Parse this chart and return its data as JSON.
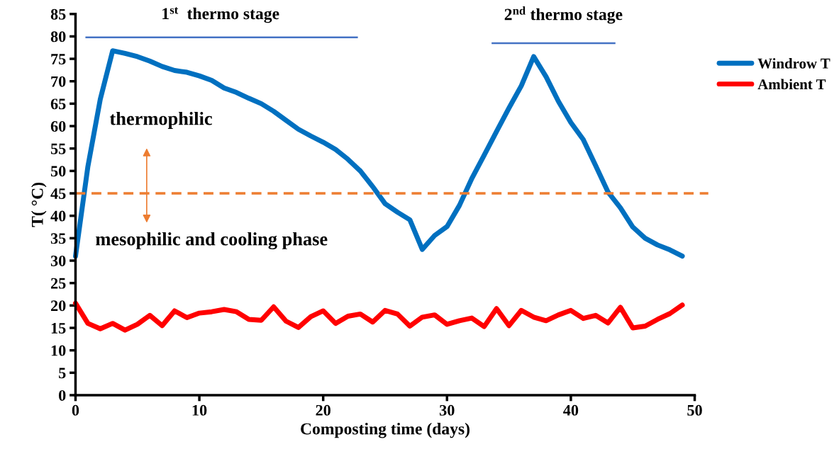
{
  "chart_data": {
    "type": "line",
    "xlabel": "Composting time (days)",
    "ylabel": "T( °C)",
    "x": [
      0,
      1,
      2,
      3,
      4,
      5,
      6,
      7,
      8,
      9,
      10,
      11,
      12,
      13,
      14,
      15,
      16,
      17,
      18,
      19,
      20,
      21,
      22,
      23,
      24,
      25,
      26,
      27,
      28,
      29,
      30,
      31,
      32,
      33,
      34,
      35,
      36,
      37,
      38,
      39,
      40,
      41,
      42,
      43,
      44,
      45,
      46,
      47,
      48,
      49
    ],
    "series": [
      {
        "name": "Windrow T",
        "color": "#0070c0",
        "values": [
          31,
          51,
          66,
          76.8,
          76.2,
          75.5,
          74.5,
          73.3,
          72.4,
          72,
          71.2,
          70.2,
          68.5,
          67.5,
          66.2,
          65,
          63.3,
          61.3,
          59.3,
          57.8,
          56.4,
          54.8,
          52.6,
          50,
          46.5,
          42.7,
          40.8,
          39.1,
          32.5,
          35.6,
          37.6,
          42.3,
          48.3,
          53.5,
          58.8,
          64,
          69,
          75.5,
          71,
          65.5,
          60.8,
          57,
          51.2,
          45.3,
          41.8,
          37.5,
          35,
          33.5,
          32.4,
          31
        ]
      },
      {
        "name": "Ambient T",
        "color": "#ff0000",
        "values": [
          20.5,
          16,
          14.8,
          16,
          14.5,
          15.8,
          17.8,
          15.5,
          18.8,
          17.3,
          18.3,
          18.6,
          19.1,
          18.6,
          16.9,
          16.7,
          19.7,
          16.5,
          15.1,
          17.5,
          18.8,
          16,
          17.6,
          18.1,
          16.3,
          18.9,
          18.1,
          15.4,
          17.4,
          17.9,
          15.8,
          16.6,
          17.2,
          15.3,
          19.3,
          15.5,
          18.9,
          17.4,
          16.6,
          17.9,
          18.9,
          17.1,
          17.8,
          16.1,
          19.6,
          15,
          15.4,
          16.9,
          18.2,
          20.1
        ]
      },
      {
        "type": "line",
        "color": "#4472c4",
        "x": [
          0.8,
          22.8
        ],
        "values": [
          79.8,
          79.8
        ]
      },
      {
        "type": "line",
        "color": "#4472c4",
        "x": [
          33.6,
          43.6
        ],
        "values": [
          78.5,
          78.5
        ]
      }
    ],
    "xlim": [
      0,
      50
    ],
    "xticks": [
      0,
      10,
      20,
      30,
      40,
      50
    ],
    "ylim": [
      0,
      85
    ],
    "yticks": [
      0,
      5,
      10,
      15,
      20,
      25,
      30,
      35,
      40,
      45,
      50,
      55,
      60,
      65,
      70,
      75,
      80,
      85
    ],
    "ref_lines": [
      {
        "axis": "y",
        "value": 45,
        "color": "#ed7d31",
        "line_style": "dashed"
      }
    ],
    "annotations": [
      "1$^{st}$  thermo stage",
      "2$^{nd}$ thermo stage",
      "thermophilic",
      "mesophilic and cooling phase"
    ],
    "legend": "right",
    "grid": false,
    "marker": "none",
    "line_style": "solid"
  }
}
